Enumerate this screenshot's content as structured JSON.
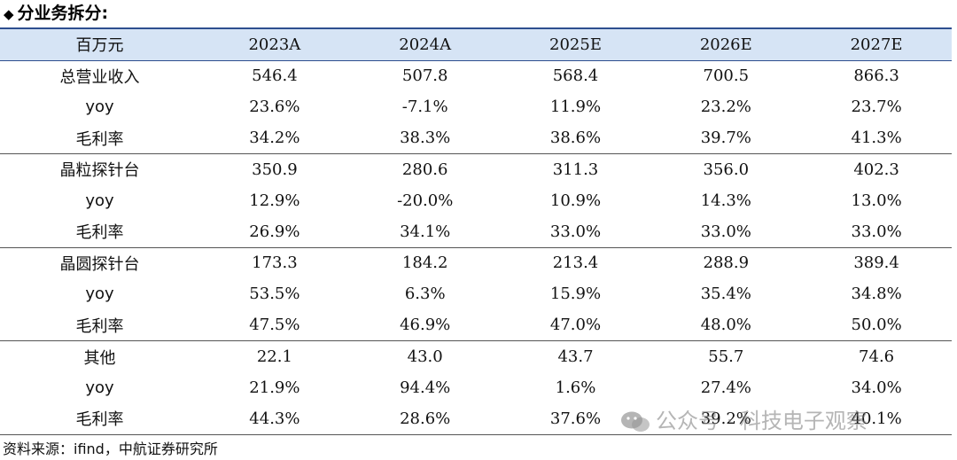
{
  "title": "分业务拆分:",
  "table": {
    "headers": [
      "百万元",
      "2023A",
      "2024A",
      "2025E",
      "2026E",
      "2027E"
    ],
    "groups": [
      {
        "rows": [
          {
            "label": "总营业收入",
            "values": [
              "546.4",
              "507.8",
              "568.4",
              "700.5",
              "866.3"
            ]
          },
          {
            "label": "yoy",
            "values": [
              "23.6%",
              "-7.1%",
              "11.9%",
              "23.2%",
              "23.7%"
            ]
          },
          {
            "label": "毛利率",
            "values": [
              "34.2%",
              "38.3%",
              "38.6%",
              "39.7%",
              "41.3%"
            ]
          }
        ]
      },
      {
        "rows": [
          {
            "label": "晶粒探针台",
            "values": [
              "350.9",
              "280.6",
              "311.3",
              "356.0",
              "402.3"
            ]
          },
          {
            "label": "yoy",
            "values": [
              "12.9%",
              "-20.0%",
              "10.9%",
              "14.3%",
              "13.0%"
            ]
          },
          {
            "label": "毛利率",
            "values": [
              "26.9%",
              "34.1%",
              "33.0%",
              "33.0%",
              "33.0%"
            ]
          }
        ]
      },
      {
        "rows": [
          {
            "label": "晶圆探针台",
            "values": [
              "173.3",
              "184.2",
              "213.4",
              "288.9",
              "389.4"
            ]
          },
          {
            "label": "yoy",
            "values": [
              "53.5%",
              "6.3%",
              "15.9%",
              "35.4%",
              "34.8%"
            ]
          },
          {
            "label": "毛利率",
            "values": [
              "47.5%",
              "46.9%",
              "47.0%",
              "48.0%",
              "50.0%"
            ]
          }
        ]
      },
      {
        "rows": [
          {
            "label": "其他",
            "values": [
              "22.1",
              "43.0",
              "43.7",
              "55.7",
              "74.6"
            ]
          },
          {
            "label": "yoy",
            "values": [
              "21.9%",
              "94.4%",
              "1.6%",
              "27.4%",
              "34.0%"
            ]
          },
          {
            "label": "毛利率",
            "values": [
              "44.3%",
              "28.6%",
              "37.6%",
              "39.2%",
              "40.1%"
            ]
          }
        ]
      }
    ]
  },
  "source": "资料来源：ifind，中航证券研究所",
  "watermark": "公众号 · 科技电子观察",
  "colors": {
    "header_bg": "#d6e4f5",
    "header_rule": "#2e4f8f"
  }
}
